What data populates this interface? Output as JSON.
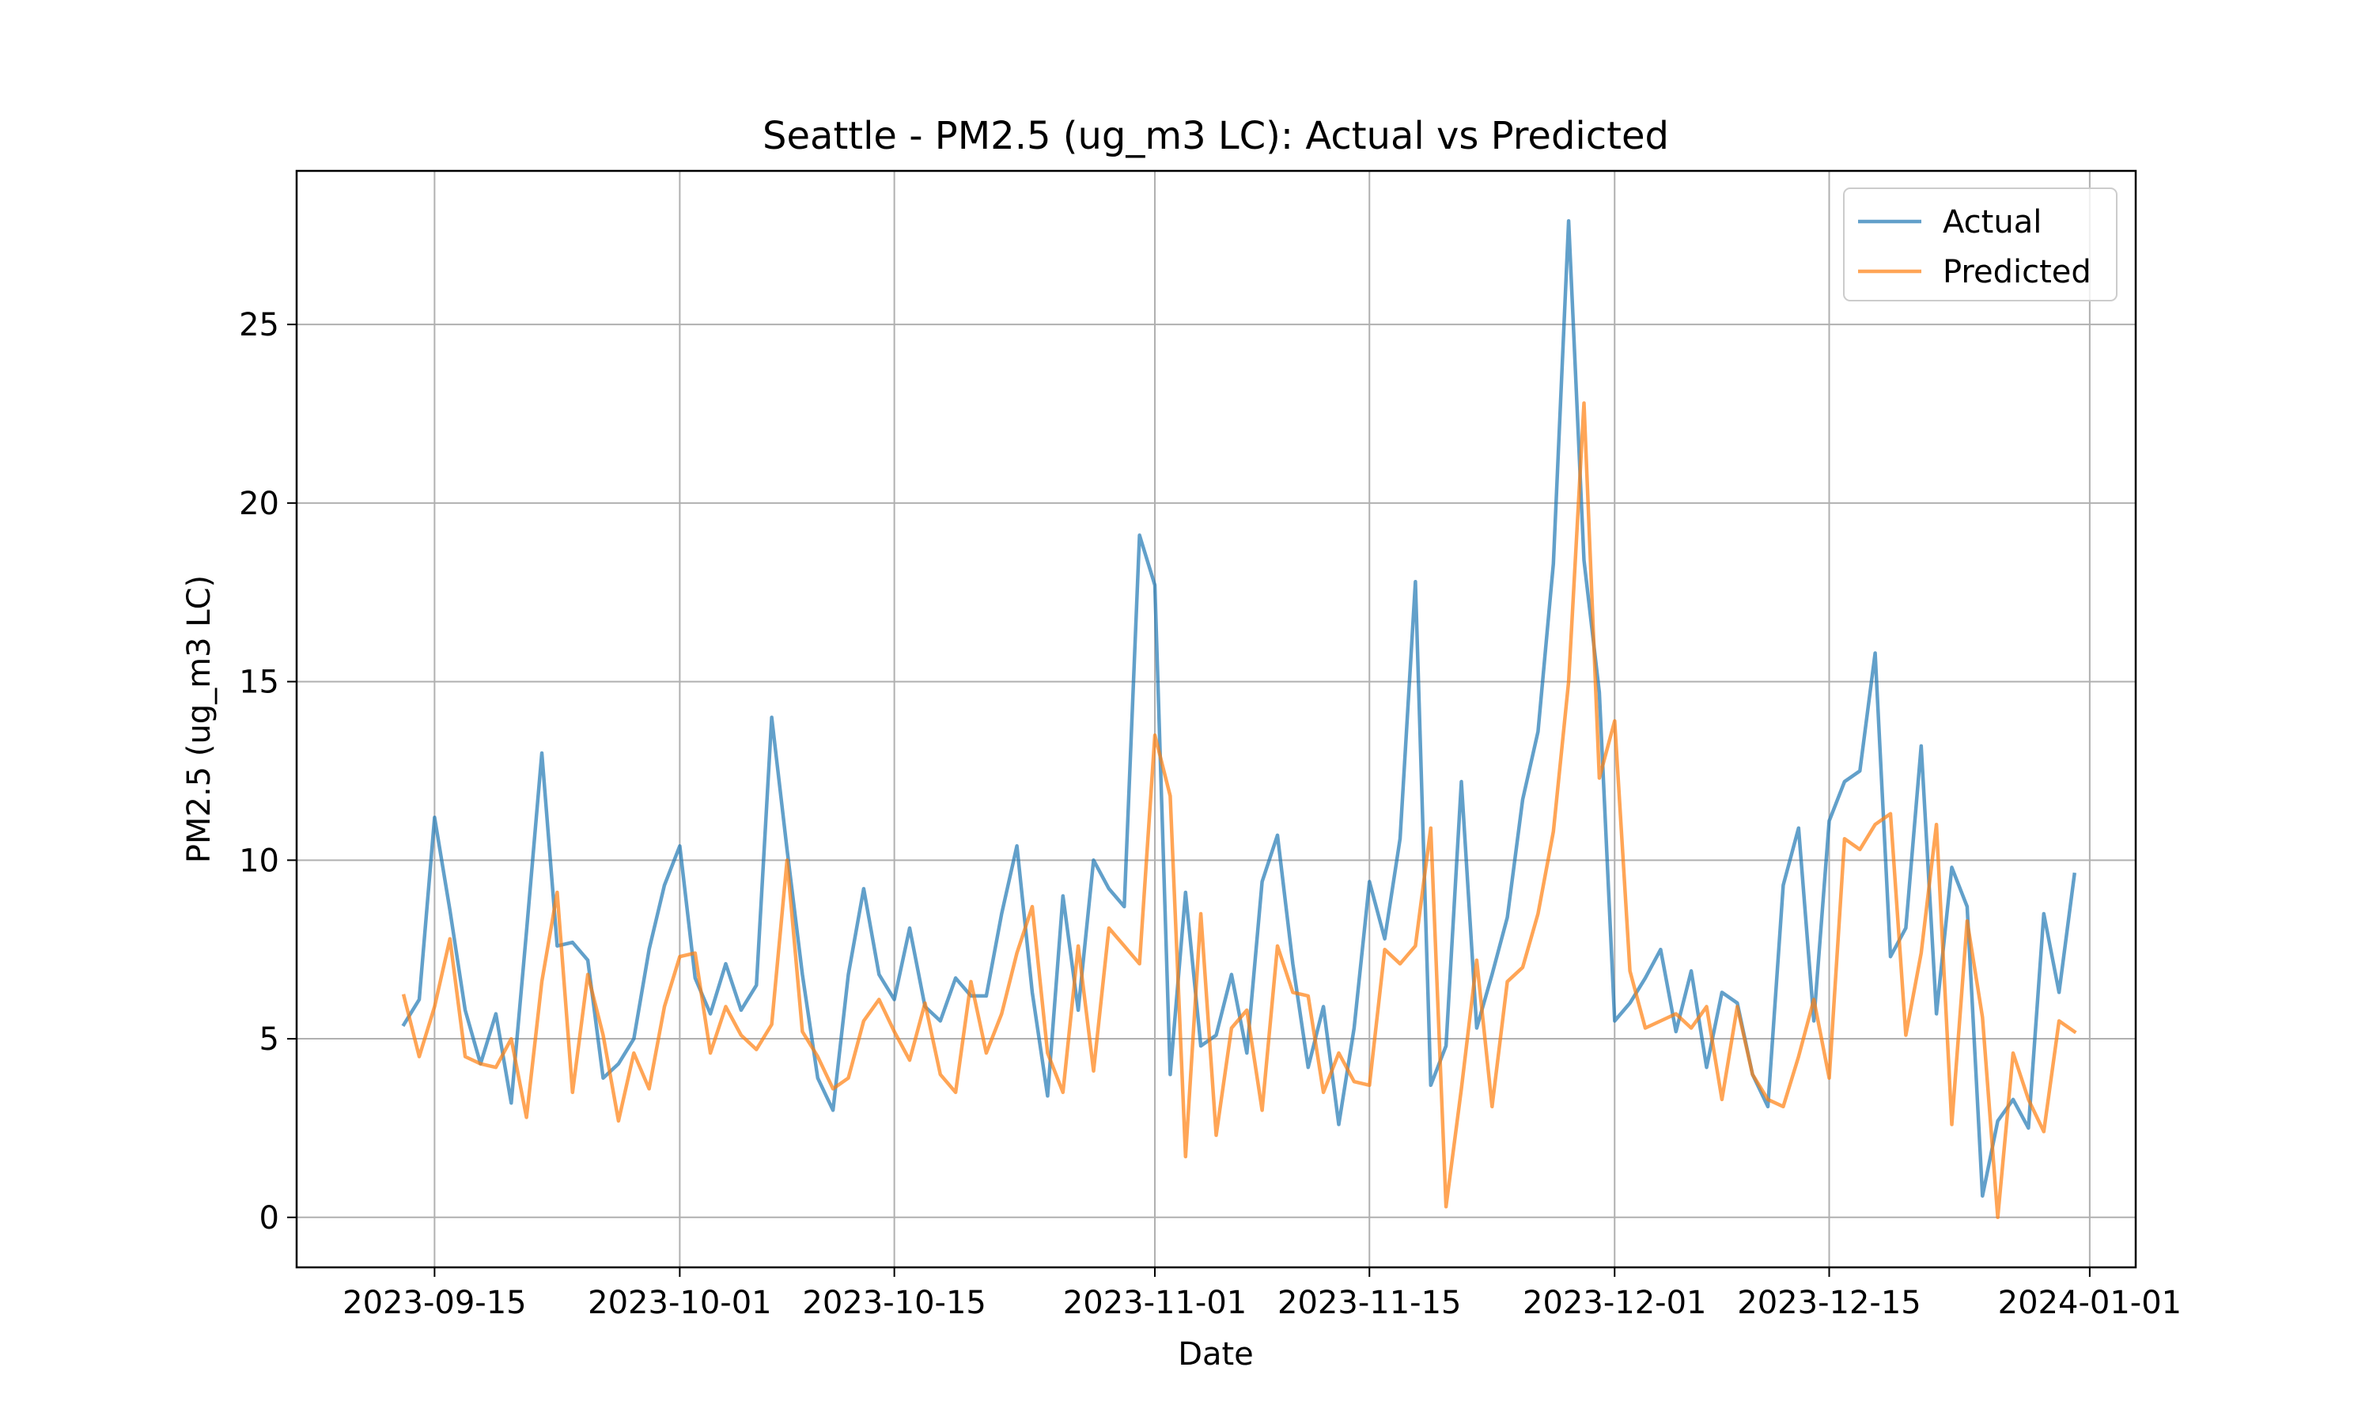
{
  "chart_data": {
    "type": "line",
    "title": "Seattle - PM2.5 (ug_m3 LC): Actual vs Predicted",
    "xlabel": "Date",
    "ylabel": "PM2.5 (ug_m3 LC)",
    "xlim": [
      "2023-09-06",
      "2024-01-04"
    ],
    "ylim": [
      -1.4,
      29.3
    ],
    "x_ticks": [
      "2023-09-15",
      "2023-10-01",
      "2023-10-15",
      "2023-11-01",
      "2023-11-15",
      "2023-12-01",
      "2023-12-15",
      "2024-01-01"
    ],
    "y_ticks": [
      0,
      5,
      10,
      15,
      20,
      25
    ],
    "grid": true,
    "legend_position": "top-right",
    "x": [
      "2023-09-13",
      "2023-09-14",
      "2023-09-15",
      "2023-09-16",
      "2023-09-17",
      "2023-09-18",
      "2023-09-19",
      "2023-09-20",
      "2023-09-21",
      "2023-09-22",
      "2023-09-23",
      "2023-09-24",
      "2023-09-25",
      "2023-09-26",
      "2023-09-27",
      "2023-09-28",
      "2023-09-29",
      "2023-09-30",
      "2023-10-01",
      "2023-10-02",
      "2023-10-03",
      "2023-10-04",
      "2023-10-05",
      "2023-10-06",
      "2023-10-07",
      "2023-10-08",
      "2023-10-09",
      "2023-10-10",
      "2023-10-11",
      "2023-10-12",
      "2023-10-13",
      "2023-10-14",
      "2023-10-15",
      "2023-10-16",
      "2023-10-17",
      "2023-10-18",
      "2023-10-19",
      "2023-10-20",
      "2023-10-21",
      "2023-10-22",
      "2023-10-23",
      "2023-10-24",
      "2023-10-25",
      "2023-10-26",
      "2023-10-27",
      "2023-10-28",
      "2023-10-29",
      "2023-10-30",
      "2023-10-31",
      "2023-11-01",
      "2023-11-02",
      "2023-11-03",
      "2023-11-04",
      "2023-11-05",
      "2023-11-06",
      "2023-11-07",
      "2023-11-08",
      "2023-11-09",
      "2023-11-10",
      "2023-11-11",
      "2023-11-12",
      "2023-11-13",
      "2023-11-14",
      "2023-11-15",
      "2023-11-16",
      "2023-11-17",
      "2023-11-18",
      "2023-11-19",
      "2023-11-20",
      "2023-11-21",
      "2023-11-22",
      "2023-11-23",
      "2023-11-24",
      "2023-11-25",
      "2023-11-26",
      "2023-11-27",
      "2023-11-28",
      "2023-11-29",
      "2023-11-30",
      "2023-12-01",
      "2023-12-02",
      "2023-12-03",
      "2023-12-04",
      "2023-12-05",
      "2023-12-06",
      "2023-12-07",
      "2023-12-08",
      "2023-12-09",
      "2023-12-10",
      "2023-12-11",
      "2023-12-12",
      "2023-12-13",
      "2023-12-14",
      "2023-12-15",
      "2023-12-16",
      "2023-12-17",
      "2023-12-18",
      "2023-12-19",
      "2023-12-20",
      "2023-12-21",
      "2023-12-22",
      "2023-12-23",
      "2023-12-24",
      "2023-12-25",
      "2023-12-26",
      "2023-12-27",
      "2023-12-28",
      "2023-12-29",
      "2023-12-30",
      "2023-12-31"
    ],
    "series": [
      {
        "name": "Actual",
        "color": "#1f77b4",
        "values": [
          5.4,
          6.1,
          11.2,
          8.6,
          5.8,
          4.3,
          5.7,
          3.2,
          8.0,
          13.0,
          7.6,
          7.7,
          7.2,
          3.9,
          4.3,
          5.0,
          7.5,
          9.3,
          10.4,
          6.7,
          5.7,
          7.1,
          5.8,
          6.5,
          14.0,
          10.3,
          6.8,
          3.9,
          3.0,
          6.8,
          9.2,
          6.8,
          6.1,
          8.1,
          5.9,
          5.5,
          6.7,
          6.2,
          6.2,
          8.5,
          10.4,
          6.3,
          3.4,
          9.0,
          5.8,
          10.0,
          9.2,
          8.7,
          19.1,
          17.7,
          4.0,
          9.1,
          4.8,
          5.1,
          6.8,
          4.6,
          9.4,
          10.7,
          7.1,
          4.2,
          5.9,
          2.6,
          5.3,
          9.4,
          7.8,
          10.6,
          17.8,
          3.7,
          4.8,
          12.2,
          5.3,
          6.8,
          8.4,
          11.7,
          13.6,
          18.3,
          27.9,
          18.4,
          14.7,
          5.5,
          6.0,
          6.7,
          7.5,
          5.2,
          6.9,
          4.2,
          6.3,
          6.0,
          4.0,
          3.1,
          9.3,
          10.9,
          5.5,
          11.1,
          12.2,
          12.5,
          15.8,
          7.3,
          8.1,
          13.2,
          5.7,
          9.8,
          8.7,
          0.6,
          2.7,
          3.3,
          2.5,
          8.5,
          6.3,
          9.6
        ]
      },
      {
        "name": "Predicted",
        "color": "#ff7f0e",
        "values": [
          6.2,
          4.5,
          5.9,
          7.8,
          4.5,
          4.3,
          4.2,
          5.0,
          2.8,
          6.6,
          9.1,
          3.5,
          6.8,
          5.1,
          2.7,
          4.6,
          3.6,
          5.9,
          7.3,
          7.4,
          4.6,
          5.9,
          5.1,
          4.7,
          5.4,
          10.0,
          5.2,
          4.5,
          3.6,
          3.9,
          5.5,
          6.1,
          5.2,
          4.4,
          6.0,
          4.0,
          3.5,
          6.6,
          4.6,
          5.7,
          7.4,
          8.7,
          4.6,
          3.5,
          7.6,
          4.1,
          8.1,
          7.6,
          7.1,
          13.5,
          11.8,
          1.7,
          8.5,
          2.3,
          5.3,
          5.8,
          3.0,
          7.6,
          6.3,
          6.2,
          3.5,
          4.6,
          3.8,
          3.7,
          7.5,
          7.1,
          7.6,
          10.9,
          0.3,
          3.6,
          7.2,
          3.1,
          6.6,
          7.0,
          8.5,
          10.8,
          15.0,
          22.8,
          12.3,
          13.9,
          6.9,
          5.3,
          5.5,
          5.7,
          5.3,
          5.9,
          3.3,
          5.9,
          4.0,
          3.3,
          3.1,
          4.5,
          6.1,
          3.9,
          10.6,
          10.3,
          11.0,
          11.3,
          5.1,
          7.4,
          11.0,
          2.6,
          8.3,
          5.6,
          0.0,
          4.6,
          3.3,
          2.4,
          5.5,
          5.2
        ]
      }
    ]
  }
}
